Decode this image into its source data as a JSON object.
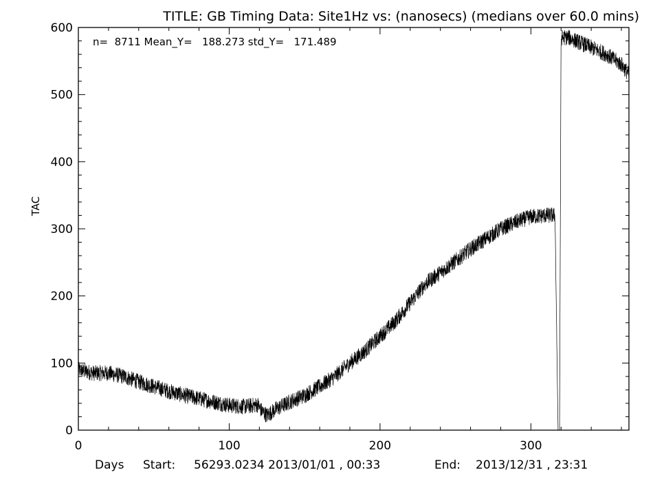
{
  "chart_data": {
    "type": "line",
    "title": "TITLE: GB Timing Data: Site1Hz vs: (nanosecs) (medians over 60.0 mins)",
    "xlabel": "Days",
    "ylabel": "TAC",
    "xlim": [
      0,
      365
    ],
    "ylim": [
      0,
      600
    ],
    "x_ticks": [
      0,
      100,
      200,
      300
    ],
    "y_ticks": [
      0,
      100,
      200,
      300,
      400,
      500,
      600
    ],
    "grid": false,
    "stats_text": "n=  8711 Mean_Y=   188.273 std_Y=   171.489",
    "footer": {
      "start_label": "Start:",
      "start_value": "56293.0234 2013/01/01 , 00:33",
      "end_label": "End:",
      "end_value": "2013/12/31 , 23:31"
    },
    "series": [
      {
        "trend": {
          "x": [
            0,
            10,
            20,
            30,
            40,
            50,
            60,
            70,
            80,
            90,
            100,
            110,
            119,
            121,
            125,
            130,
            140,
            150,
            160,
            170,
            180,
            190,
            200,
            210,
            220,
            230,
            240,
            250,
            260,
            270,
            280,
            290,
            300,
            310,
            316,
            318,
            319,
            320,
            325,
            330,
            340,
            350,
            360,
            365
          ],
          "y": [
            90,
            85,
            85,
            80,
            72,
            65,
            58,
            52,
            47,
            42,
            37,
            35,
            38,
            30,
            22,
            30,
            42,
            52,
            65,
            80,
            100,
            118,
            140,
            162,
            190,
            218,
            235,
            252,
            270,
            285,
            300,
            310,
            318,
            320,
            320,
            0,
            0,
            585,
            585,
            580,
            570,
            560,
            545,
            530
          ]
        },
        "noise_amplitude": 12,
        "sample_count": 8711
      }
    ]
  }
}
